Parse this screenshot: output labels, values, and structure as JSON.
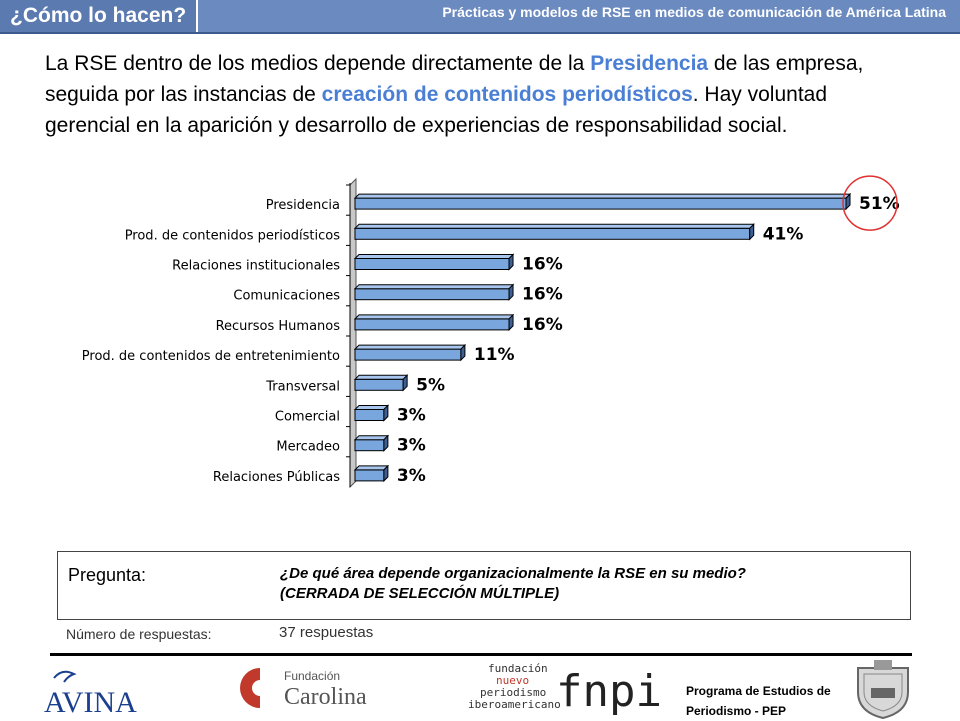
{
  "header": {
    "section_title": "¿Cómo lo hacen?",
    "subtitle": "Prácticas y modelos de RSE en medios de comunicación de América Latina"
  },
  "intro": {
    "t1": "La RSE dentro de los medios depende directamente de la ",
    "h1": "Presidencia",
    "t2": " de las empresa, seguida por las instancias de ",
    "h2": "creación de contenidos periodísticos",
    "t3": ". Hay voluntad gerencial en la aparición y desarrollo de experiencias de responsabilidad social."
  },
  "chart_data": {
    "type": "bar",
    "orientation": "horizontal",
    "categories": [
      "Presidencia",
      "Prod. de contenidos periodísticos",
      "Relaciones institucionales",
      "Comunicaciones",
      "Recursos Humanos",
      "Prod. de contenidos de entretenimiento",
      "Transversal",
      "Comercial",
      "Mercadeo",
      "Relaciones Públicas"
    ],
    "values": [
      51,
      41,
      16,
      16,
      16,
      11,
      5,
      3,
      3,
      3
    ],
    "data_labels": [
      "51%",
      "41%",
      "16%",
      "16%",
      "16%",
      "11%",
      "5%",
      "3%",
      "3%",
      "3%"
    ],
    "xlim": [
      0,
      55
    ],
    "bar_color": "#7aa6de",
    "highlight_circle_color": "#e03030",
    "highlight_index": 0
  },
  "question": {
    "label": "Pregunta:",
    "line1": "¿De qué área depende organizacionalmente la RSE en su medio?",
    "line2": "(CERRADA DE SELECCIÓN MÚLTIPLE)"
  },
  "responses": {
    "label": "Número de respuestas:",
    "value": "37 respuestas"
  },
  "footer": {
    "avina": "AVINA",
    "carolina_small": "Fundación",
    "carolina_big": "Carolina",
    "fnpi_words": [
      "fundación",
      "nuevo",
      "periodismo",
      "iberoamericano"
    ],
    "fnpi": "fnpi",
    "pep_line1": "Programa de Estudios de",
    "pep_line2": "Periodismo - PEP"
  }
}
